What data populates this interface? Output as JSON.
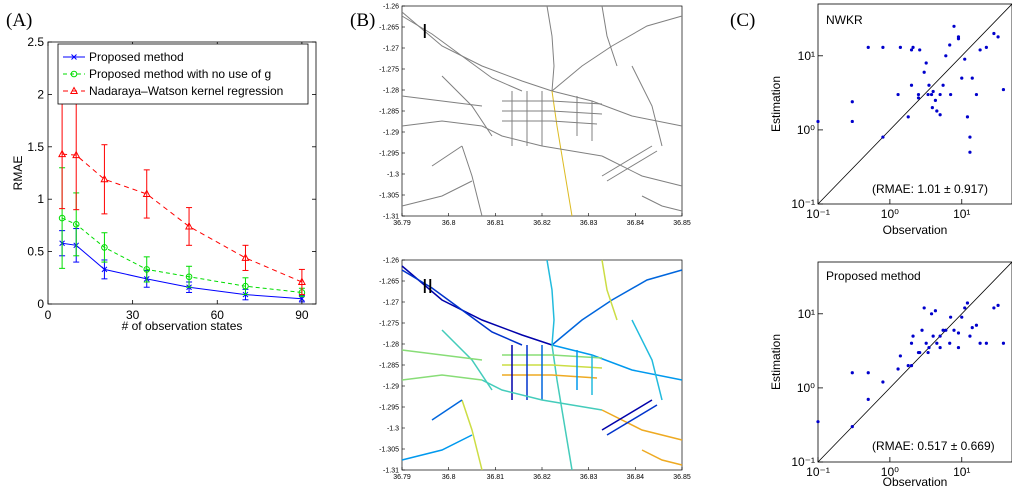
{
  "panels": {
    "a": "(A)",
    "b": "(B)",
    "c": "(C)"
  },
  "colors": {
    "proposed": "#0000ff",
    "nog": "#00dd00",
    "nwkr": "#ff0000",
    "road": "#808080",
    "point": "#0000cc"
  },
  "chart_data": [
    {
      "type": "line",
      "panel": "A",
      "xlabel": "# of observation states",
      "ylabel": "RMAE",
      "xlim": [
        0,
        95
      ],
      "ylim": [
        0,
        2.5
      ],
      "xticks": [
        0,
        30,
        60,
        90
      ],
      "yticks": [
        0,
        0.5,
        1,
        1.5,
        2,
        2.5
      ],
      "legend_position": "top-right",
      "grid": false,
      "x": [
        5,
        10,
        20,
        35,
        50,
        70,
        90
      ],
      "series": [
        {
          "name": "Proposed method",
          "values": [
            0.58,
            0.56,
            0.33,
            0.24,
            0.16,
            0.09,
            0.05
          ],
          "err": [
            0.12,
            0.16,
            0.09,
            0.08,
            0.05,
            0.05,
            0.03
          ],
          "color": "#0000ff",
          "dash": "",
          "marker": "x"
        },
        {
          "name": "Proposed method with no use of g",
          "values": [
            0.82,
            0.76,
            0.54,
            0.33,
            0.26,
            0.17,
            0.11
          ],
          "err": [
            0.48,
            0.3,
            0.14,
            0.12,
            0.1,
            0.08,
            0.04
          ],
          "color": "#00dd00",
          "dash": "4,3",
          "marker": "o"
        },
        {
          "name": "Nadaraya–Watson kernel regression",
          "values": [
            1.43,
            1.42,
            1.19,
            1.05,
            0.74,
            0.44,
            0.21
          ],
          "err": [
            0.52,
            0.52,
            0.33,
            0.23,
            0.18,
            0.12,
            0.12
          ],
          "color": "#ff0000",
          "dash": "5,4",
          "marker": "^"
        }
      ]
    },
    {
      "type": "heatmap",
      "panel": "B-I",
      "label": "I",
      "xlim": [
        36.79,
        36.85
      ],
      "ylim": [
        -1.31,
        -1.26
      ],
      "xticks": [
        36.79,
        36.8,
        36.81,
        36.82,
        36.83,
        36.84,
        36.85
      ],
      "yticks": [
        -1.26,
        -1.265,
        -1.27,
        -1.275,
        -1.28,
        -1.285,
        -1.29,
        -1.295,
        -1.3,
        -1.305,
        -1.31
      ]
    },
    {
      "type": "heatmap",
      "panel": "B-II",
      "label": "II",
      "xlim": [
        36.79,
        36.85
      ],
      "ylim": [
        -1.31,
        -1.26
      ],
      "xticks": [
        36.79,
        36.8,
        36.81,
        36.82,
        36.83,
        36.84,
        36.85
      ],
      "yticks": [
        -1.26,
        -1.265,
        -1.27,
        -1.275,
        -1.28,
        -1.285,
        -1.29,
        -1.295,
        -1.3,
        -1.305,
        -1.31
      ]
    },
    {
      "type": "scatter",
      "panel": "C-top",
      "title": "NWKR",
      "annotation": "(RMAE: 1.01 ± 0.917)",
      "xlabel": "Observation",
      "ylabel": "Estimation",
      "scale": "log",
      "xlim": [
        0.1,
        50
      ],
      "ylim": [
        0.1,
        50
      ],
      "ticks": [
        0.1,
        1,
        10
      ],
      "tick_labels": [
        "10⁻¹",
        "10⁰",
        "10¹"
      ],
      "points": [
        [
          0.1,
          1.3
        ],
        [
          0.3,
          2.4
        ],
        [
          0.3,
          1.3
        ],
        [
          0.5,
          13
        ],
        [
          0.8,
          13
        ],
        [
          0.8,
          0.8
        ],
        [
          1.3,
          3
        ],
        [
          1.4,
          13
        ],
        [
          1.8,
          1.5
        ],
        [
          2,
          4
        ],
        [
          2,
          12
        ],
        [
          2.1,
          13
        ],
        [
          2.5,
          3
        ],
        [
          2.6,
          12
        ],
        [
          2.5,
          2.7
        ],
        [
          3,
          6
        ],
        [
          3.2,
          8
        ],
        [
          3.4,
          3
        ],
        [
          3.5,
          4
        ],
        [
          3.8,
          3
        ],
        [
          3.9,
          2
        ],
        [
          4,
          3.3
        ],
        [
          4.3,
          2.5
        ],
        [
          4.5,
          1.8
        ],
        [
          5,
          1.6
        ],
        [
          5,
          3
        ],
        [
          5.5,
          4
        ],
        [
          6,
          10
        ],
        [
          6.8,
          14
        ],
        [
          7,
          3
        ],
        [
          7.8,
          25
        ],
        [
          9,
          17
        ],
        [
          9,
          18
        ],
        [
          10,
          5
        ],
        [
          11,
          9
        ],
        [
          12,
          1.5
        ],
        [
          13,
          0.8
        ],
        [
          13,
          0.5
        ],
        [
          14,
          5
        ],
        [
          16,
          3
        ],
        [
          18,
          12
        ],
        [
          22,
          13
        ],
        [
          28,
          20
        ],
        [
          32,
          18
        ],
        [
          38,
          3.5
        ]
      ]
    },
    {
      "type": "scatter",
      "panel": "C-bottom",
      "title": "Proposed method",
      "annotation": "(RMAE: 0.517 ± 0.669)",
      "xlabel": "Observation",
      "ylabel": "Estimation",
      "scale": "log",
      "xlim": [
        0.1,
        50
      ],
      "ylim": [
        0.1,
        50
      ],
      "ticks": [
        0.1,
        1,
        10
      ],
      "tick_labels": [
        "10⁻¹",
        "10⁰",
        "10¹"
      ],
      "points": [
        [
          0.1,
          0.35
        ],
        [
          0.3,
          0.3
        ],
        [
          0.3,
          1.6
        ],
        [
          0.5,
          1.6
        ],
        [
          0.5,
          0.7
        ],
        [
          0.8,
          1.2
        ],
        [
          1.3,
          1.8
        ],
        [
          1.4,
          2.7
        ],
        [
          1.8,
          2
        ],
        [
          2,
          4
        ],
        [
          2,
          2
        ],
        [
          2.1,
          5
        ],
        [
          2.5,
          3
        ],
        [
          2.6,
          3
        ],
        [
          2.8,
          6
        ],
        [
          3,
          12
        ],
        [
          3.2,
          4
        ],
        [
          3.4,
          3
        ],
        [
          3.5,
          3.5
        ],
        [
          3.8,
          10
        ],
        [
          4,
          5
        ],
        [
          4.3,
          11
        ],
        [
          4.5,
          4
        ],
        [
          5,
          5
        ],
        [
          5,
          3.5
        ],
        [
          5.5,
          6
        ],
        [
          6,
          6
        ],
        [
          6.8,
          4
        ],
        [
          7,
          9
        ],
        [
          7.8,
          6
        ],
        [
          9,
          5.5
        ],
        [
          9,
          3.5
        ],
        [
          10,
          9
        ],
        [
          11,
          12
        ],
        [
          12,
          14
        ],
        [
          13,
          5
        ],
        [
          14,
          6.5
        ],
        [
          16,
          7
        ],
        [
          18,
          4
        ],
        [
          22,
          4
        ],
        [
          28,
          12
        ],
        [
          32,
          13
        ],
        [
          38,
          4
        ]
      ]
    }
  ]
}
